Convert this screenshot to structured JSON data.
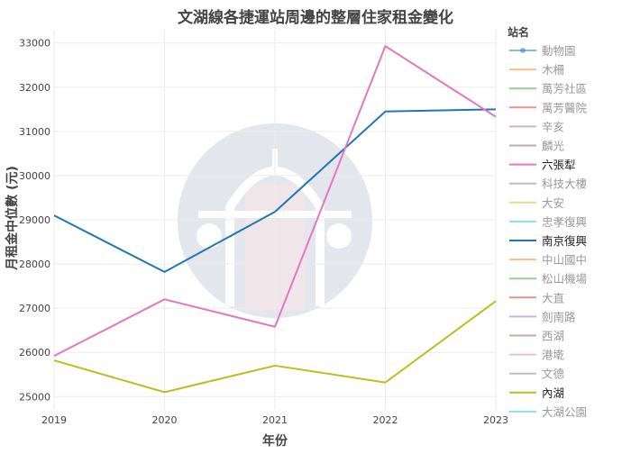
{
  "chart_data": {
    "type": "line",
    "title": "文湖線各捷運站周邊的整層住家租金變化",
    "xlabel": "年份",
    "ylabel": "月租金中位數 (元)",
    "x": [
      2019,
      2020,
      2021,
      2022,
      2023
    ],
    "xlim": [
      2019,
      2023
    ],
    "ylim": [
      24700,
      33300
    ],
    "yticks": [
      25000,
      26000,
      27000,
      28000,
      29000,
      30000,
      31000,
      32000,
      33000
    ],
    "grid": true,
    "legend_title": "站名",
    "legend_placement": "right",
    "legend_items": [
      {
        "name": "動物園",
        "color": "#1f77b4",
        "active": false,
        "marker": true
      },
      {
        "name": "木柵",
        "color": "#ff7f0e",
        "active": false
      },
      {
        "name": "萬芳社區",
        "color": "#2ca02c",
        "active": false
      },
      {
        "name": "萬芳醫院",
        "color": "#d62728",
        "active": false
      },
      {
        "name": "辛亥",
        "color": "#9467bd",
        "active": false
      },
      {
        "name": "麟光",
        "color": "#8c564b",
        "active": false
      },
      {
        "name": "六張犁",
        "color": "#e377c2",
        "active": true
      },
      {
        "name": "科技大樓",
        "color": "#7f7f7f",
        "active": false
      },
      {
        "name": "大安",
        "color": "#bcbd22",
        "active": false
      },
      {
        "name": "忠孝復興",
        "color": "#17becf",
        "active": false
      },
      {
        "name": "南京復興",
        "color": "#1f77b4",
        "active": true
      },
      {
        "name": "中山國中",
        "color": "#ff7f0e",
        "active": false
      },
      {
        "name": "松山機場",
        "color": "#2ca02c",
        "active": false
      },
      {
        "name": "大直",
        "color": "#d62728",
        "active": false
      },
      {
        "name": "劍南路",
        "color": "#9467bd",
        "active": false
      },
      {
        "name": "西湖",
        "color": "#8c564b",
        "active": false
      },
      {
        "name": "港墘",
        "color": "#e377c2",
        "active": false
      },
      {
        "name": "文德",
        "color": "#7f7f7f",
        "active": false
      },
      {
        "name": "內湖",
        "color": "#bcbd22",
        "active": true
      },
      {
        "name": "大湖公園",
        "color": "#17becf",
        "active": false
      }
    ],
    "series": [
      {
        "name": "南京復興",
        "color": "#1f77b4",
        "values": [
          29100,
          27820,
          29180,
          31450,
          31500
        ]
      },
      {
        "name": "六張犁",
        "color": "#e377c2",
        "values": [
          25920,
          27200,
          26580,
          32930,
          31330
        ]
      },
      {
        "name": "內湖",
        "color": "#bcbd22",
        "values": [
          25820,
          25100,
          25700,
          25320,
          27160
        ]
      }
    ]
  }
}
